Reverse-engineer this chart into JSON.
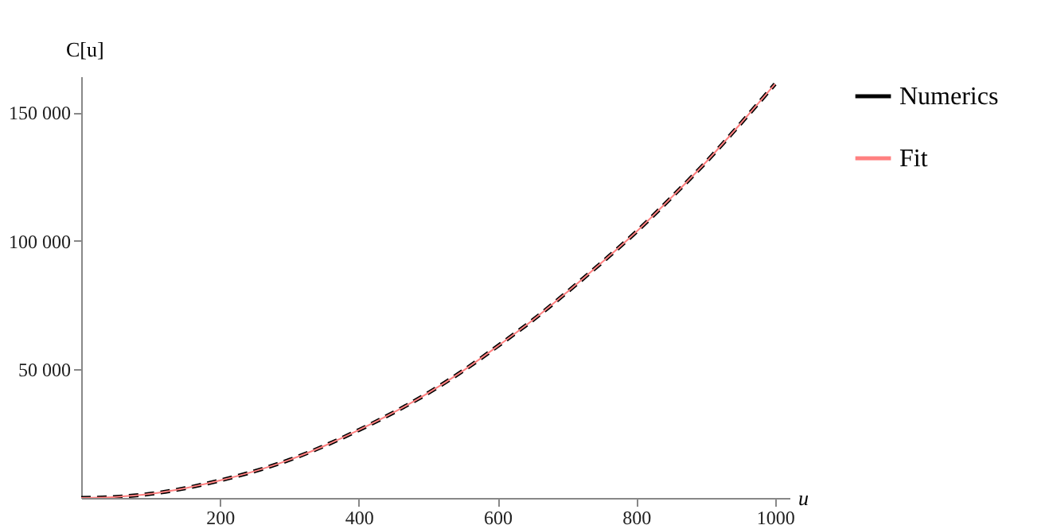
{
  "chart_data": {
    "type": "line",
    "xlabel": "u",
    "ylabel": "C[u]",
    "x": [
      0,
      50,
      100,
      150,
      200,
      250,
      300,
      350,
      400,
      450,
      500,
      550,
      600,
      650,
      700,
      750,
      800,
      850,
      900,
      950,
      1000
    ],
    "series": [
      {
        "name": "Numerics",
        "color": "#000000",
        "line_style": "dashed",
        "values": [
          0,
          400,
          1600,
          3800,
          6800,
          10400,
          14800,
          20200,
          26400,
          33200,
          40800,
          49400,
          59000,
          69000,
          80000,
          91500,
          103500,
          116700,
          130500,
          145500,
          161000
        ]
      },
      {
        "name": "Fit",
        "color": "#ff8080",
        "line_style": "solid",
        "values": [
          0,
          400,
          1600,
          3800,
          6800,
          10400,
          14800,
          20200,
          26400,
          33200,
          40800,
          49400,
          59000,
          69000,
          80000,
          91500,
          103500,
          116700,
          130500,
          145500,
          161000
        ]
      }
    ],
    "xlim": [
      0,
      1021
    ],
    "xticks": [
      200,
      400,
      600,
      800,
      1000
    ],
    "ylim": [
      0,
      164000
    ],
    "yticks": [
      {
        "value": 50000,
        "label": "50 000"
      },
      {
        "value": 100000,
        "label": "100 000"
      },
      {
        "value": 150000,
        "label": "150 000"
      }
    ],
    "grid": false,
    "legend": "right"
  }
}
